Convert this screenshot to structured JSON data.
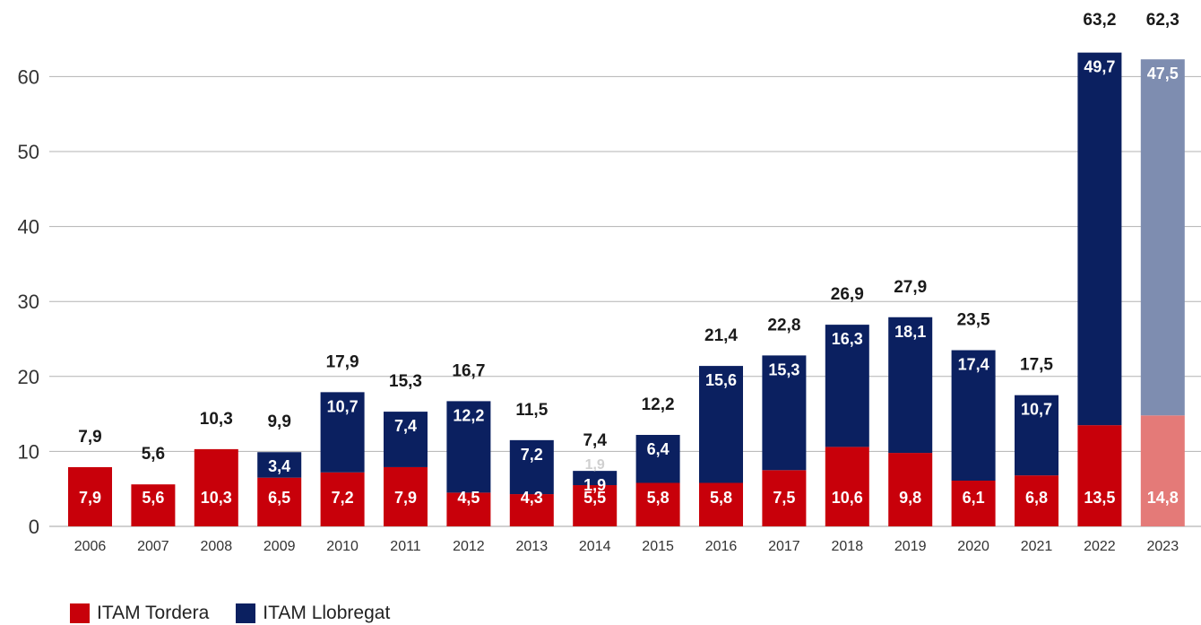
{
  "colors": {
    "tordera": "#C8000A",
    "llobregat": "#0B2060",
    "tordera_2023": "#E47A78",
    "llobregat_2023": "#7E8DB0",
    "grid": "#b3b3b3",
    "text": "#1a1a1a",
    "axis_text": "#333333"
  },
  "chart_data": {
    "type": "bar",
    "stacked": true,
    "categories": [
      "2006",
      "2007",
      "2008",
      "2009",
      "2010",
      "2011",
      "2012",
      "2013",
      "2014",
      "2015",
      "2016",
      "2017",
      "2018",
      "2019",
      "2020",
      "2021",
      "2022",
      "2023"
    ],
    "series": [
      {
        "name": "ITAM Tordera",
        "values": [
          7.9,
          5.6,
          10.3,
          6.5,
          7.2,
          7.9,
          4.5,
          4.3,
          5.5,
          5.8,
          5.8,
          7.5,
          10.6,
          9.8,
          6.1,
          6.8,
          13.5,
          14.8
        ],
        "labels": [
          "7,9",
          "5,6",
          "10,3",
          "6,5",
          "7,2",
          "7,9",
          "4,5",
          "4,3",
          "5,5",
          "5,8",
          "5,8",
          "7,5",
          "10,6",
          "9,8",
          "6,1",
          "6,8",
          "13,5",
          "14,8"
        ]
      },
      {
        "name": "ITAM Llobregat",
        "values": [
          0,
          0,
          0,
          3.4,
          10.7,
          7.4,
          12.2,
          7.2,
          1.9,
          6.4,
          15.6,
          15.3,
          16.3,
          18.1,
          17.4,
          10.7,
          49.7,
          47.5
        ],
        "labels": [
          "",
          "",
          "",
          "3,4",
          "10,7",
          "7,4",
          "12,2",
          "7,2",
          "1,9",
          "6,4",
          "15,6",
          "15,3",
          "16,3",
          "18,1",
          "17,4",
          "10,7",
          "49,7",
          "47,5"
        ]
      }
    ],
    "totals": [
      7.9,
      5.6,
      10.3,
      9.9,
      17.9,
      15.3,
      16.7,
      11.5,
      7.4,
      12.2,
      21.4,
      22.8,
      26.9,
      27.9,
      23.5,
      17.5,
      63.2,
      62.3
    ],
    "total_labels": [
      "7,9",
      "5,6",
      "10,3",
      "9,9",
      "17,9",
      "15,3",
      "16,7",
      "11,5",
      "7,4",
      "12,2",
      "21,4",
      "22,8",
      "26,9",
      "27,9",
      "23,5",
      "17,5",
      "63,2",
      "62,3"
    ],
    "ghost_label": "1,9",
    "yticks": [
      0,
      10,
      20,
      30,
      40,
      50,
      60
    ],
    "ylim": [
      0,
      63.2
    ],
    "grid": true,
    "legend_position": "bottom-left",
    "highlight_category": "2023"
  },
  "legend": [
    {
      "label": "ITAM Tordera"
    },
    {
      "label": "ITAM Llobregat"
    }
  ]
}
